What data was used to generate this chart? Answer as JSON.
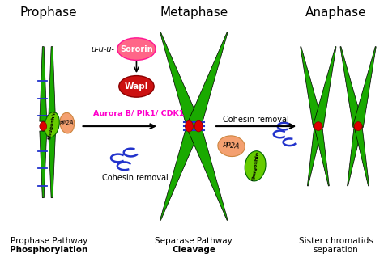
{
  "bg_color": "#ffffff",
  "green": "#1aaa00",
  "red": "#dd0000",
  "magenta": "#ff00cc",
  "salmon": "#f4a070",
  "lime": "#66cc00",
  "blue": "#2233cc",
  "pink_sororin": "#ff6688",
  "red_wapl": "#cc1111",
  "title_prophase": "Prophase",
  "title_metaphase": "Metaphase",
  "title_anaphase": "Anaphase",
  "label1a": "Prophase Pathway",
  "label1b": "Phosphorylation",
  "label2a": "Separase Pathway",
  "label2b": "Cleavage",
  "label3a": "Sister chromatids",
  "label3b": "separation",
  "sororin_label": "Sororin",
  "wapl_label": "Wapl",
  "aurora_label": "Aurora B/ Plk1/ CDK1",
  "cohesin_label1": "Cohesin removal",
  "cohesin_label2": "Cohesin removal",
  "shugoshin_label": "Shugoshin",
  "pp2a_label": "PP2A",
  "uuuu": "u-u-u-"
}
